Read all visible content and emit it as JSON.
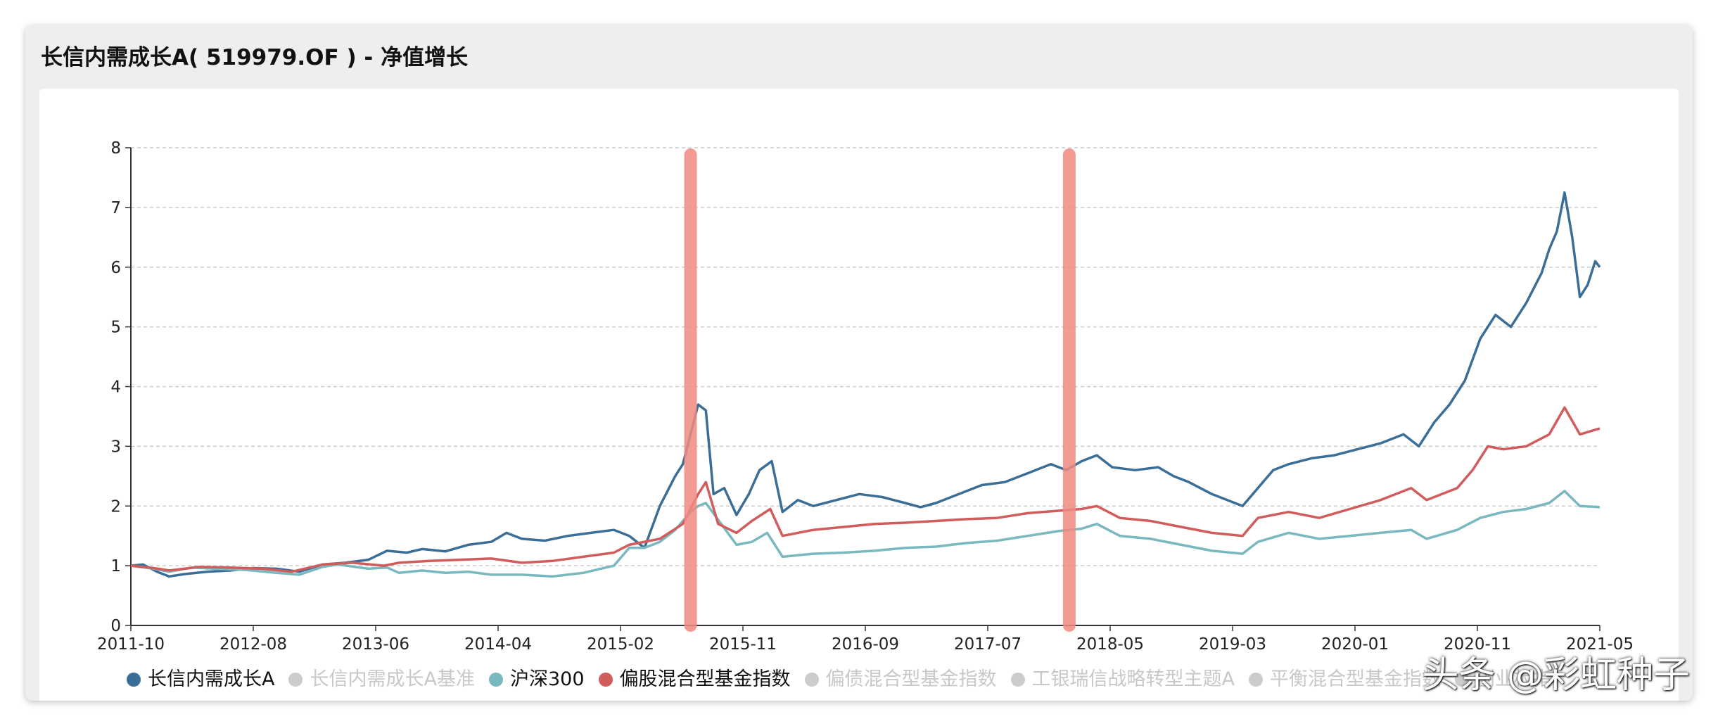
{
  "header": {
    "title": "长信内需成长A( 519979.OF ) - 净值增长"
  },
  "watermark": "头条 @彩虹种子",
  "chart_data": {
    "type": "line",
    "x_ticks": [
      "2011-10",
      "2012-08",
      "2013-06",
      "2014-04",
      "2015-02",
      "2015-11",
      "2016-09",
      "2017-07",
      "2018-05",
      "2019-03",
      "2020-01",
      "2020-11",
      "2021-05"
    ],
    "x_range": [
      2011.75,
      2021.33
    ],
    "ylim": [
      0,
      8
    ],
    "y_ticks": [
      0,
      1,
      2,
      3,
      4,
      5,
      6,
      7,
      8
    ],
    "grid": true,
    "legend_position": "bottom",
    "series": [
      {
        "name": "长信内需成长A",
        "color": "#3b6e96",
        "active": true,
        "points": [
          [
            2011.75,
            1.0
          ],
          [
            2011.83,
            1.02
          ],
          [
            2011.92,
            0.9
          ],
          [
            2012.0,
            0.82
          ],
          [
            2012.1,
            0.86
          ],
          [
            2012.25,
            0.9
          ],
          [
            2012.4,
            0.92
          ],
          [
            2012.55,
            0.96
          ],
          [
            2012.7,
            0.95
          ],
          [
            2012.85,
            0.9
          ],
          [
            2013.0,
            1.02
          ],
          [
            2013.15,
            1.05
          ],
          [
            2013.3,
            1.1
          ],
          [
            2013.42,
            1.25
          ],
          [
            2013.55,
            1.22
          ],
          [
            2013.65,
            1.28
          ],
          [
            2013.8,
            1.24
          ],
          [
            2013.95,
            1.35
          ],
          [
            2014.1,
            1.4
          ],
          [
            2014.2,
            1.55
          ],
          [
            2014.3,
            1.45
          ],
          [
            2014.45,
            1.42
          ],
          [
            2014.6,
            1.5
          ],
          [
            2014.75,
            1.55
          ],
          [
            2014.9,
            1.6
          ],
          [
            2015.0,
            1.5
          ],
          [
            2015.1,
            1.3
          ],
          [
            2015.2,
            2.0
          ],
          [
            2015.3,
            2.5
          ],
          [
            2015.35,
            2.7
          ],
          [
            2015.4,
            3.2
          ],
          [
            2015.45,
            3.7
          ],
          [
            2015.5,
            3.6
          ],
          [
            2015.55,
            2.2
          ],
          [
            2015.62,
            2.3
          ],
          [
            2015.7,
            1.85
          ],
          [
            2015.78,
            2.2
          ],
          [
            2015.85,
            2.6
          ],
          [
            2015.93,
            2.75
          ],
          [
            2016.0,
            1.9
          ],
          [
            2016.1,
            2.1
          ],
          [
            2016.2,
            2.0
          ],
          [
            2016.35,
            2.1
          ],
          [
            2016.5,
            2.2
          ],
          [
            2016.65,
            2.15
          ],
          [
            2016.8,
            2.05
          ],
          [
            2016.9,
            1.98
          ],
          [
            2017.0,
            2.05
          ],
          [
            2017.15,
            2.2
          ],
          [
            2017.3,
            2.35
          ],
          [
            2017.45,
            2.4
          ],
          [
            2017.6,
            2.55
          ],
          [
            2017.75,
            2.7
          ],
          [
            2017.85,
            2.6
          ],
          [
            2017.95,
            2.75
          ],
          [
            2018.05,
            2.85
          ],
          [
            2018.15,
            2.65
          ],
          [
            2018.3,
            2.6
          ],
          [
            2018.45,
            2.65
          ],
          [
            2018.55,
            2.5
          ],
          [
            2018.65,
            2.4
          ],
          [
            2018.8,
            2.2
          ],
          [
            2018.95,
            2.05
          ],
          [
            2019.0,
            2.0
          ],
          [
            2019.1,
            2.3
          ],
          [
            2019.2,
            2.6
          ],
          [
            2019.3,
            2.7
          ],
          [
            2019.45,
            2.8
          ],
          [
            2019.6,
            2.85
          ],
          [
            2019.75,
            2.95
          ],
          [
            2019.9,
            3.05
          ],
          [
            2020.05,
            3.2
          ],
          [
            2020.15,
            3.0
          ],
          [
            2020.25,
            3.4
          ],
          [
            2020.35,
            3.7
          ],
          [
            2020.45,
            4.1
          ],
          [
            2020.55,
            4.8
          ],
          [
            2020.65,
            5.2
          ],
          [
            2020.75,
            5.0
          ],
          [
            2020.85,
            5.4
          ],
          [
            2020.95,
            5.9
          ],
          [
            2021.0,
            6.3
          ],
          [
            2021.05,
            6.6
          ],
          [
            2021.1,
            7.25
          ],
          [
            2021.15,
            6.5
          ],
          [
            2021.2,
            5.5
          ],
          [
            2021.25,
            5.7
          ],
          [
            2021.3,
            6.1
          ],
          [
            2021.33,
            6.0
          ]
        ]
      },
      {
        "name": "长信内需成长A基准",
        "color": "#cccccc",
        "active": false,
        "points": []
      },
      {
        "name": "沪深300",
        "color": "#7ab8c0",
        "active": true,
        "points": [
          [
            2011.75,
            1.0
          ],
          [
            2011.9,
            0.95
          ],
          [
            2012.0,
            0.9
          ],
          [
            2012.15,
            0.97
          ],
          [
            2012.3,
            0.95
          ],
          [
            2012.5,
            0.93
          ],
          [
            2012.7,
            0.88
          ],
          [
            2012.85,
            0.85
          ],
          [
            2013.0,
            0.98
          ],
          [
            2013.1,
            1.02
          ],
          [
            2013.3,
            0.95
          ],
          [
            2013.42,
            0.97
          ],
          [
            2013.5,
            0.88
          ],
          [
            2013.65,
            0.92
          ],
          [
            2013.8,
            0.88
          ],
          [
            2013.95,
            0.9
          ],
          [
            2014.1,
            0.85
          ],
          [
            2014.3,
            0.85
          ],
          [
            2014.5,
            0.82
          ],
          [
            2014.7,
            0.88
          ],
          [
            2014.9,
            1.0
          ],
          [
            2015.0,
            1.3
          ],
          [
            2015.1,
            1.3
          ],
          [
            2015.2,
            1.4
          ],
          [
            2015.3,
            1.6
          ],
          [
            2015.4,
            1.9
          ],
          [
            2015.45,
            2.0
          ],
          [
            2015.5,
            2.05
          ],
          [
            2015.6,
            1.7
          ],
          [
            2015.7,
            1.35
          ],
          [
            2015.8,
            1.4
          ],
          [
            2015.9,
            1.55
          ],
          [
            2016.0,
            1.15
          ],
          [
            2016.2,
            1.2
          ],
          [
            2016.4,
            1.22
          ],
          [
            2016.6,
            1.25
          ],
          [
            2016.8,
            1.3
          ],
          [
            2017.0,
            1.32
          ],
          [
            2017.2,
            1.38
          ],
          [
            2017.4,
            1.42
          ],
          [
            2017.6,
            1.5
          ],
          [
            2017.8,
            1.58
          ],
          [
            2017.95,
            1.62
          ],
          [
            2018.05,
            1.7
          ],
          [
            2018.2,
            1.5
          ],
          [
            2018.4,
            1.45
          ],
          [
            2018.6,
            1.35
          ],
          [
            2018.8,
            1.25
          ],
          [
            2019.0,
            1.2
          ],
          [
            2019.1,
            1.4
          ],
          [
            2019.3,
            1.55
          ],
          [
            2019.5,
            1.45
          ],
          [
            2019.7,
            1.5
          ],
          [
            2019.9,
            1.55
          ],
          [
            2020.1,
            1.6
          ],
          [
            2020.2,
            1.45
          ],
          [
            2020.4,
            1.6
          ],
          [
            2020.55,
            1.8
          ],
          [
            2020.7,
            1.9
          ],
          [
            2020.85,
            1.95
          ],
          [
            2021.0,
            2.05
          ],
          [
            2021.1,
            2.25
          ],
          [
            2021.2,
            2.0
          ],
          [
            2021.33,
            1.98
          ]
        ]
      },
      {
        "name": "偏股混合型基金指数",
        "color": "#d15c5c",
        "active": true,
        "points": [
          [
            2011.75,
            1.0
          ],
          [
            2011.9,
            0.96
          ],
          [
            2012.0,
            0.92
          ],
          [
            2012.2,
            0.98
          ],
          [
            2012.4,
            0.97
          ],
          [
            2012.6,
            0.95
          ],
          [
            2012.8,
            0.9
          ],
          [
            2013.0,
            1.02
          ],
          [
            2013.2,
            1.05
          ],
          [
            2013.4,
            1.0
          ],
          [
            2013.5,
            1.05
          ],
          [
            2013.7,
            1.08
          ],
          [
            2013.9,
            1.1
          ],
          [
            2014.1,
            1.12
          ],
          [
            2014.3,
            1.05
          ],
          [
            2014.5,
            1.08
          ],
          [
            2014.7,
            1.15
          ],
          [
            2014.9,
            1.22
          ],
          [
            2015.0,
            1.35
          ],
          [
            2015.2,
            1.45
          ],
          [
            2015.35,
            1.7
          ],
          [
            2015.45,
            2.2
          ],
          [
            2015.5,
            2.4
          ],
          [
            2015.58,
            1.7
          ],
          [
            2015.7,
            1.55
          ],
          [
            2015.8,
            1.75
          ],
          [
            2015.92,
            1.95
          ],
          [
            2016.0,
            1.5
          ],
          [
            2016.2,
            1.6
          ],
          [
            2016.4,
            1.65
          ],
          [
            2016.6,
            1.7
          ],
          [
            2016.8,
            1.72
          ],
          [
            2017.0,
            1.75
          ],
          [
            2017.2,
            1.78
          ],
          [
            2017.4,
            1.8
          ],
          [
            2017.6,
            1.88
          ],
          [
            2017.8,
            1.92
          ],
          [
            2017.95,
            1.95
          ],
          [
            2018.05,
            2.0
          ],
          [
            2018.2,
            1.8
          ],
          [
            2018.4,
            1.75
          ],
          [
            2018.6,
            1.65
          ],
          [
            2018.8,
            1.55
          ],
          [
            2019.0,
            1.5
          ],
          [
            2019.1,
            1.8
          ],
          [
            2019.3,
            1.9
          ],
          [
            2019.5,
            1.8
          ],
          [
            2019.7,
            1.95
          ],
          [
            2019.9,
            2.1
          ],
          [
            2020.1,
            2.3
          ],
          [
            2020.2,
            2.1
          ],
          [
            2020.4,
            2.3
          ],
          [
            2020.5,
            2.6
          ],
          [
            2020.6,
            3.0
          ],
          [
            2020.7,
            2.95
          ],
          [
            2020.85,
            3.0
          ],
          [
            2021.0,
            3.2
          ],
          [
            2021.1,
            3.65
          ],
          [
            2021.2,
            3.2
          ],
          [
            2021.33,
            3.3
          ]
        ]
      },
      {
        "name": "偏债混合型基金指数",
        "color": "#cccccc",
        "active": false,
        "points": []
      },
      {
        "name": "工银瑞信战略转型主题A",
        "color": "#cccccc",
        "active": false,
        "points": []
      },
      {
        "name": "平衡混合型基金指数",
        "color": "#cccccc",
        "active": false,
        "points": []
      },
      {
        "name": "创业板指",
        "color": "#cccccc",
        "active": false,
        "points": []
      }
    ],
    "annotations": [
      {
        "type": "vertical-band",
        "x": 2015.4,
        "color": "#f08a80"
      },
      {
        "type": "vertical-band",
        "x": 2017.87,
        "color": "#f08a80"
      }
    ]
  }
}
